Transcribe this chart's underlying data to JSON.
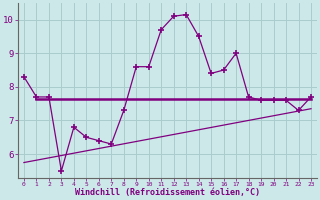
{
  "x": [
    0,
    1,
    2,
    3,
    4,
    5,
    6,
    7,
    8,
    9,
    10,
    11,
    12,
    13,
    14,
    15,
    16,
    17,
    18,
    19,
    20,
    21,
    22,
    23
  ],
  "y_main": [
    8.3,
    7.7,
    7.7,
    5.5,
    6.8,
    6.5,
    6.4,
    6.3,
    7.3,
    8.6,
    8.6,
    9.7,
    10.1,
    10.15,
    9.5,
    8.4,
    8.5,
    9.0,
    7.7,
    7.6,
    7.6,
    7.6,
    7.3,
    7.7
  ],
  "hline_y": 7.65,
  "hline_x": [
    1,
    23
  ],
  "trend_x": [
    0,
    23
  ],
  "trend_y": [
    5.75,
    7.35
  ],
  "bg_color": "#cce8e8",
  "line_color": "#800080",
  "grid_color": "#aacccc",
  "xlabel": "Windchill (Refroidissement éolien,°C)",
  "ylim": [
    5.3,
    10.5
  ],
  "xlim": [
    -0.5,
    23.5
  ],
  "yticks": [
    6,
    7,
    8,
    9,
    10
  ],
  "xticks": [
    0,
    1,
    2,
    3,
    4,
    5,
    6,
    7,
    8,
    9,
    10,
    11,
    12,
    13,
    14,
    15,
    16,
    17,
    18,
    19,
    20,
    21,
    22,
    23
  ]
}
